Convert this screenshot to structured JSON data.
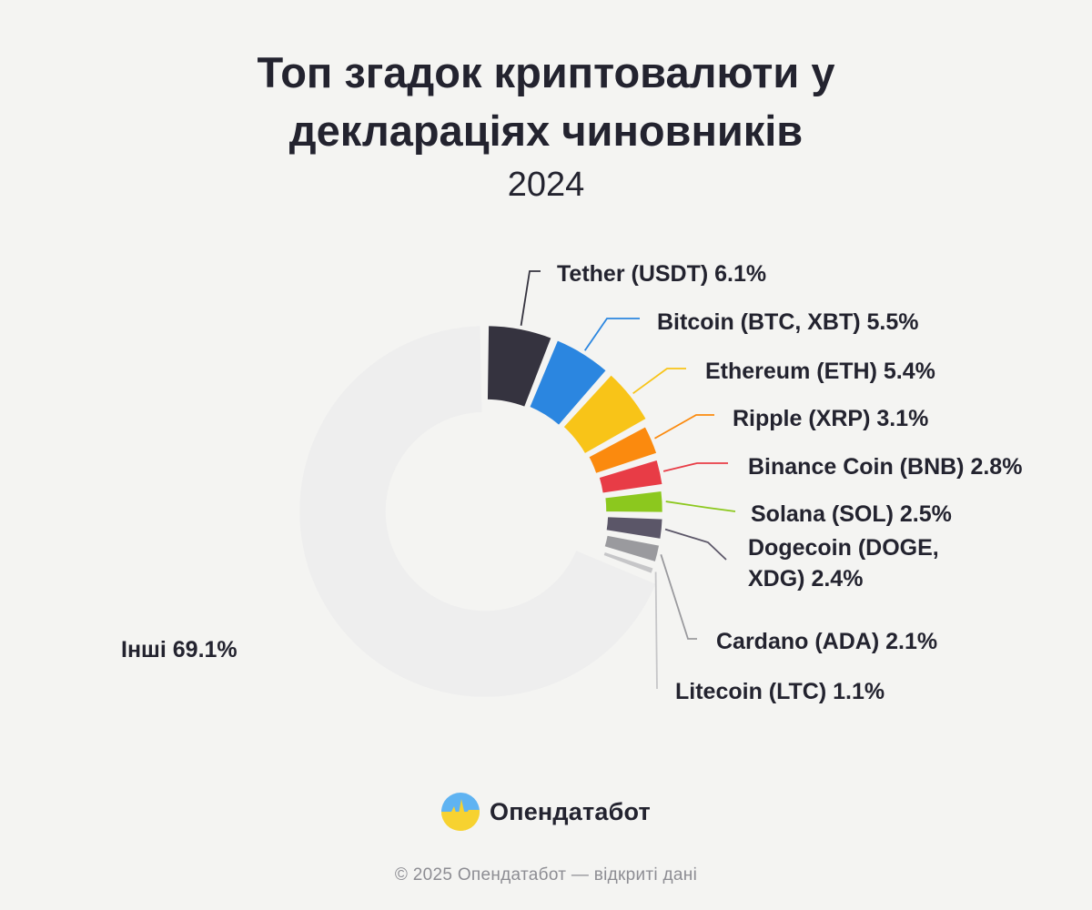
{
  "title_line1": "Топ згадок криптовалюти у",
  "title_line2": "деклараціях чиновників",
  "subtitle": "2024",
  "chart_data": {
    "type": "pie",
    "variant": "donut",
    "slices": [
      {
        "label": "Tether (USDT) 6.1%",
        "value": 6.1,
        "color": "#35333f"
      },
      {
        "label": "Bitcoin (BTC, XBT) 5.5%",
        "value": 5.5,
        "color": "#2b86e0"
      },
      {
        "label": "Ethereum (ETH) 5.4%",
        "value": 5.4,
        "color": "#f8c418"
      },
      {
        "label": "Ripple (XRP) 3.1%",
        "value": 3.1,
        "color": "#fb8a0e"
      },
      {
        "label": "Binance Coin (BNB) 2.8%",
        "value": 2.8,
        "color": "#e83c46"
      },
      {
        "label": "Solana (SOL) 2.5%",
        "value": 2.5,
        "color": "#8cc81e"
      },
      {
        "label": "Dogecoin (DOGE, XDG) 2.4%",
        "label_lines": [
          "Dogecoin (DOGE,",
          "XDG) 2.4%"
        ],
        "value": 2.4,
        "color": "#5b5668"
      },
      {
        "label": "Cardano (ADA) 2.1%",
        "value": 2.1,
        "color": "#9a9a9e"
      },
      {
        "label": "Litecoin (LTC) 1.1%",
        "value": 1.1,
        "color": "#c6c6c8"
      },
      {
        "label": "Інші 69.1%",
        "value": 69.1,
        "color": "#eeeeee"
      }
    ],
    "legend": "none"
  },
  "logo": {
    "text": "Опендатабот",
    "colors": {
      "top": "#5fb3f2",
      "bottom": "#f7d230"
    }
  },
  "footer": "© 2025 Опендатабот — відкриті дані"
}
